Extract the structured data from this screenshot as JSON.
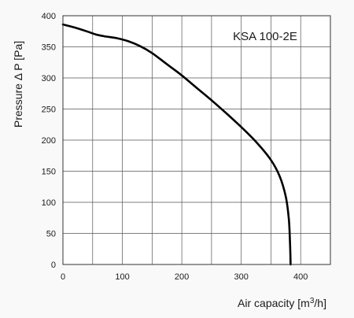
{
  "chart_data": {
    "type": "line",
    "title": "KSA 100-2E",
    "xlabel_main": "Air capacity [m",
    "xlabel_sup": "3",
    "xlabel_end": "/h]",
    "ylabel": "Pressure Δ P [Pa]",
    "xlim": [
      0,
      450
    ],
    "ylim": [
      0,
      400
    ],
    "grid": true,
    "x_grid_step": 50,
    "y_grid_step": 50,
    "x_ticks": [
      0,
      100,
      200,
      300,
      400
    ],
    "y_ticks": [
      0,
      50,
      100,
      150,
      200,
      250,
      300,
      350,
      400
    ],
    "series": [
      {
        "x": [
          0,
          20,
          40,
          55,
          70,
          90,
          110,
          130,
          150,
          175,
          200,
          225,
          250,
          275,
          300,
          325,
          350,
          365,
          375,
          380,
          382,
          383
        ],
        "y": [
          386,
          381,
          375,
          370,
          367,
          364,
          359,
          351,
          340,
          322,
          304,
          284,
          264,
          243,
          221,
          197,
          168,
          141,
          109,
          74,
          37,
          0
        ]
      }
    ]
  }
}
